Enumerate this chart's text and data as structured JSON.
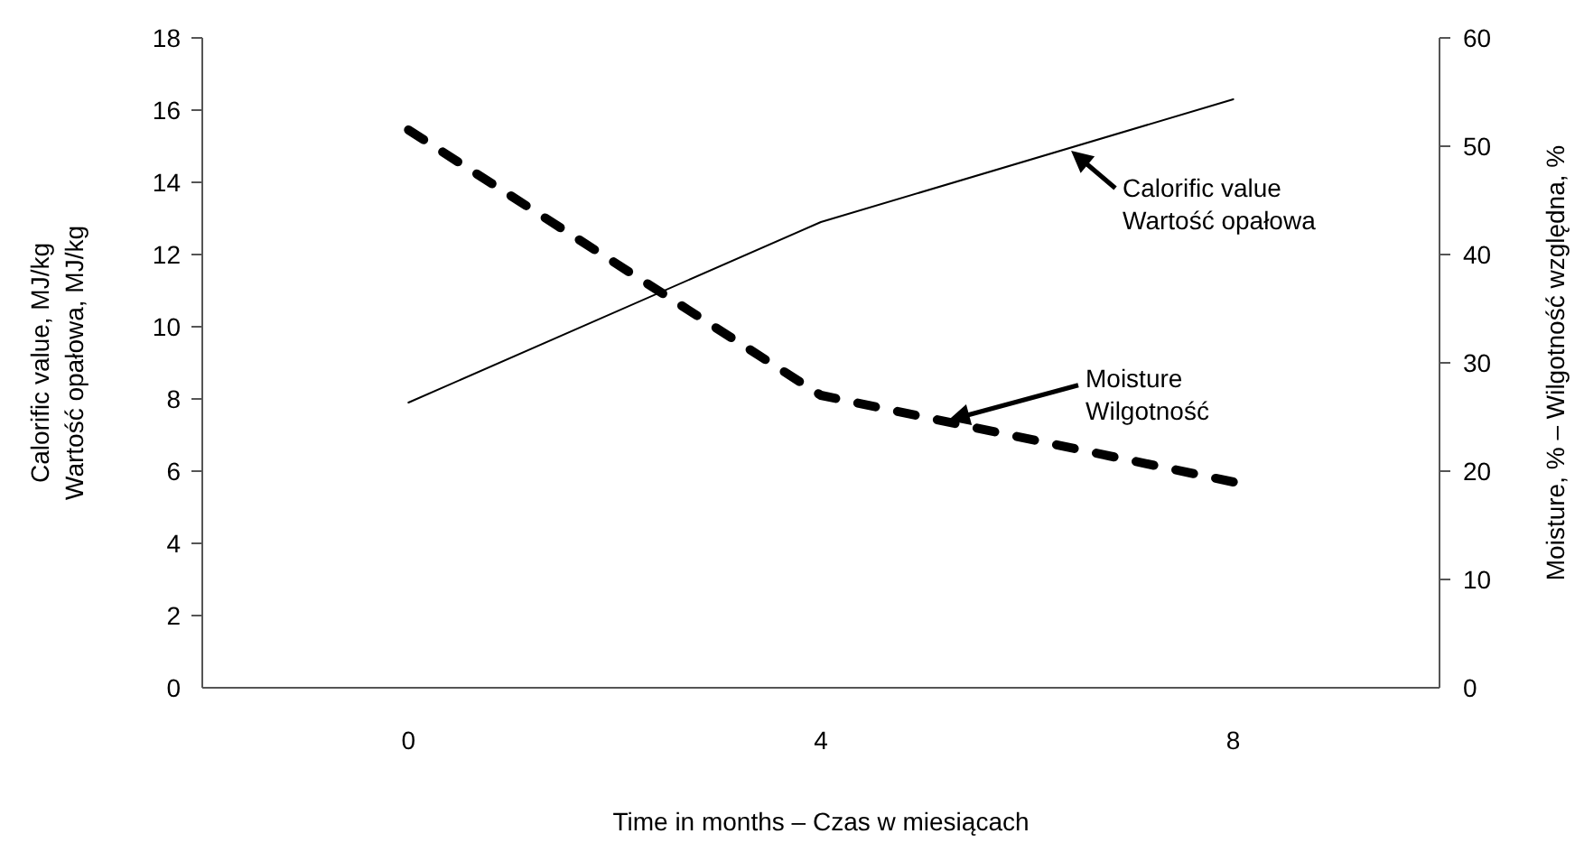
{
  "chart_data": {
    "type": "line",
    "xlabel": "Time in months – Czas w miesiącach",
    "ylabel": "Calorific value, MJ/kg\nWartość opałowa, MJ/kg",
    "y2label": "Moisture, % – Wilgotność względna, %",
    "x": [
      0,
      4,
      8
    ],
    "series": [
      {
        "name": "Calorific value\nWartość opałowa",
        "color": "#000000",
        "values": [
          7.9,
          12.9,
          16.3
        ],
        "line_style": "solid"
      },
      {
        "name": "Moisture\nWilgotność",
        "color": "#000000",
        "values": [
          51.5,
          27,
          19
        ],
        "line_style": "dashed",
        "axis": "y2"
      }
    ],
    "xlim": [
      -2,
      10
    ],
    "xticks": [
      0,
      4,
      8
    ],
    "ylim": [
      0,
      18
    ],
    "yticks": [
      0,
      2,
      4,
      6,
      8,
      10,
      12,
      14,
      16,
      18
    ],
    "y2lim": [
      0,
      60
    ],
    "y2ticks": [
      0,
      10,
      20,
      30,
      40,
      50,
      60
    ],
    "grid": false,
    "legend": false,
    "marker": "none"
  }
}
